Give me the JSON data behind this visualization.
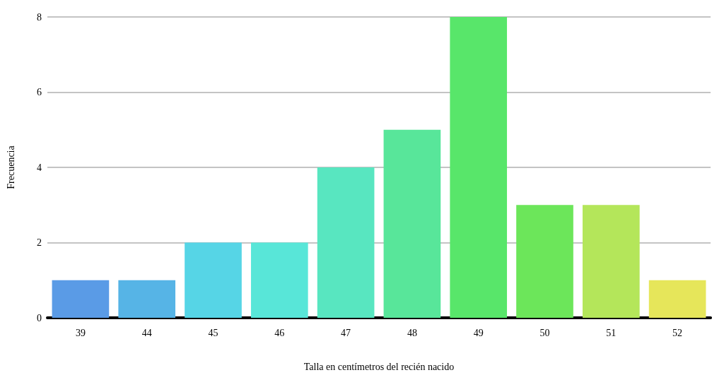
{
  "chart_data": {
    "type": "bar",
    "xlabel": "Talla en centímetros del recién nacido",
    "ylabel": "Frecuencia",
    "categories": [
      "39",
      "44",
      "45",
      "46",
      "47",
      "48",
      "49",
      "50",
      "51",
      "52"
    ],
    "values": [
      1,
      1,
      2,
      2,
      4,
      5,
      8,
      3,
      3,
      1
    ],
    "colors": [
      "#5a9be6",
      "#56b4e6",
      "#56d5e6",
      "#58e6d8",
      "#58e6c0",
      "#58e69a",
      "#58e66a",
      "#6ce65a",
      "#b4e65a",
      "#e6e65a"
    ],
    "ylim": [
      0,
      8
    ],
    "yticks": [
      0,
      2,
      4,
      6,
      8
    ],
    "grid": "y"
  }
}
